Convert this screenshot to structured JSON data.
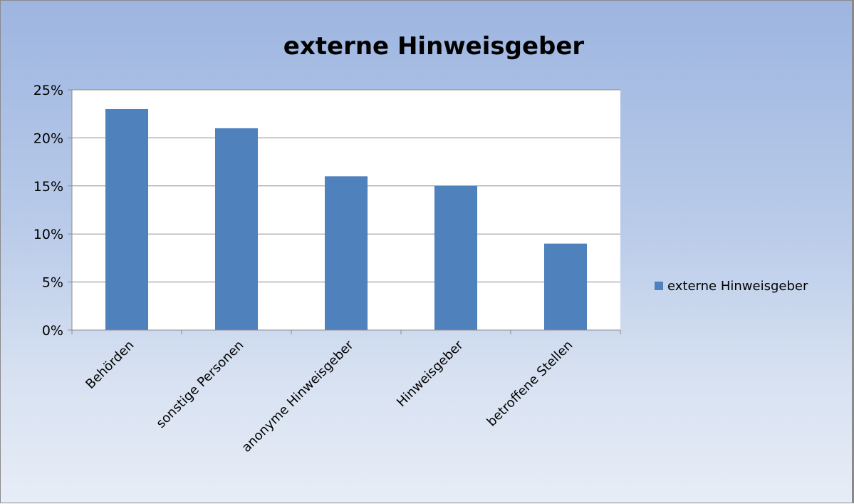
{
  "chart_data": {
    "type": "bar",
    "title": "externe Hinweisgeber",
    "categories": [
      "Behörden",
      "sonstige Personen",
      "anonyme Hinweisgeber",
      "Hinweisgeber",
      "betroffene Stellen"
    ],
    "series": [
      {
        "name": "externe Hinweisgeber",
        "values": [
          0.23,
          0.21,
          0.16,
          0.15,
          0.09
        ]
      }
    ],
    "y_ticks": [
      "0%",
      "5%",
      "10%",
      "15%",
      "20%",
      "25%"
    ],
    "ylim": [
      0,
      0.25
    ],
    "y_format": "percent",
    "grid": true,
    "legend_position": "right",
    "colors": {
      "bar": "#4f81bd",
      "plot_background": "#ffffff",
      "gridline": "#8c8c8c",
      "axis": "#8c8c8c"
    }
  }
}
